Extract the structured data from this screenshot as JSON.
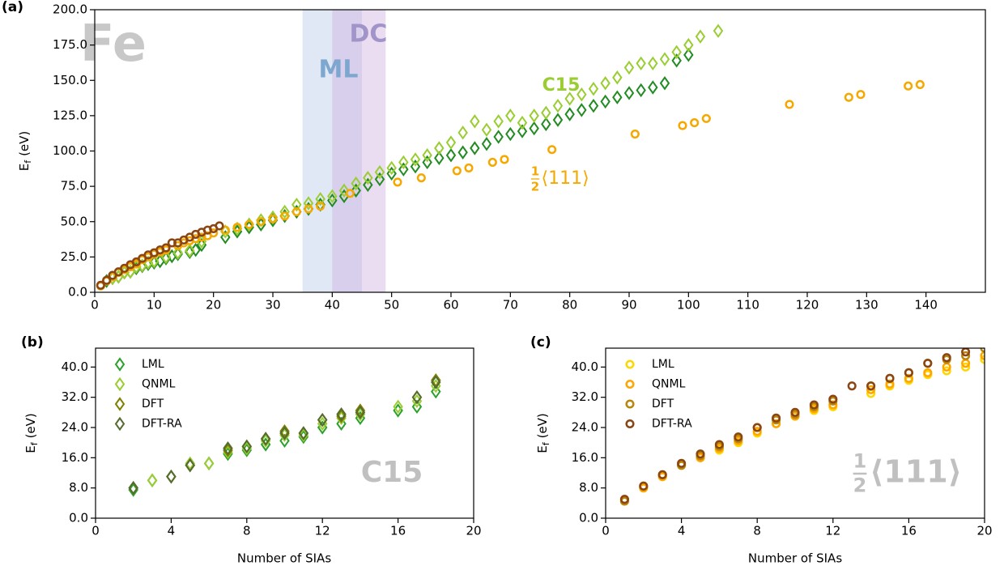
{
  "chart_data": [
    {
      "type": "scatter",
      "panel_label": "(a)",
      "y_label": {
        "main": "E",
        "sub": "f",
        "unit": "(eV)"
      },
      "xlim": [
        0,
        150
      ],
      "ylim": [
        0,
        200
      ],
      "xticks": [
        0,
        10,
        20,
        30,
        40,
        50,
        60,
        70,
        80,
        90,
        100,
        110,
        120,
        130,
        140
      ],
      "yticks": [
        {
          "value": 0,
          "label": "0.0"
        },
        {
          "value": 25,
          "label": "25.0"
        },
        {
          "value": 50,
          "label": "50.0"
        },
        {
          "value": 75,
          "label": "75.0"
        },
        {
          "value": 100,
          "label": "100.0"
        },
        {
          "value": 125,
          "label": "125.0"
        },
        {
          "value": 150,
          "label": "150.0"
        },
        {
          "value": 175,
          "label": "175.0"
        },
        {
          "value": 200,
          "label": "200.0"
        }
      ],
      "spans": [
        {
          "range": [
            35,
            45
          ],
          "color": "#aec2e4"
        },
        {
          "range": [
            40,
            49
          ],
          "color": "#c7a6da"
        }
      ],
      "annotations": [
        {
          "text": "Fe",
          "color": "#c8c8c8"
        },
        {
          "text": "ML",
          "color": "#7ea7cf"
        },
        {
          "text": "DC",
          "color": "#a194c8"
        },
        {
          "text": "C15",
          "color": "#9acd32"
        }
      ],
      "fraction_label": {
        "numerator": "1",
        "denominator": "2",
        "text": "⟨111⟩",
        "color": "#f5a800"
      },
      "series": [
        {
          "color": "#228b22",
          "marker": "diamond",
          "x": [
            2,
            3,
            4,
            5,
            6,
            7,
            8,
            9,
            10,
            11,
            12,
            13,
            14,
            16,
            17,
            18,
            22,
            24,
            26,
            28,
            30,
            32,
            34,
            36,
            38,
            40,
            42,
            44,
            46,
            48,
            50,
            52,
            54,
            56,
            58,
            60,
            62,
            64,
            66,
            68,
            70,
            72,
            74,
            76,
            78,
            80,
            82,
            84,
            86,
            88,
            90,
            92,
            94,
            96,
            98,
            100
          ],
          "values": [
            8,
            10,
            11,
            14,
            14.5,
            17,
            18.5,
            20,
            21,
            22,
            24,
            25.5,
            27,
            28.5,
            30,
            33.5,
            39,
            43,
            46,
            48,
            51,
            54,
            57,
            59,
            62,
            65,
            68,
            72,
            76,
            80,
            84,
            87,
            89,
            92,
            95,
            97,
            99,
            102,
            105,
            110,
            112,
            114,
            116,
            119,
            122,
            126,
            129,
            132,
            135,
            138,
            141,
            143,
            145,
            148,
            164,
            168
          ]
        },
        {
          "color": "#9acd32",
          "marker": "diamond",
          "x": [
            3,
            4,
            5,
            6,
            7,
            8,
            9,
            10,
            12,
            14,
            16,
            18,
            22,
            24,
            26,
            28,
            30,
            32,
            34,
            36,
            38,
            40,
            42,
            44,
            46,
            48,
            50,
            52,
            54,
            56,
            58,
            60,
            62,
            64,
            66,
            68,
            70,
            72,
            74,
            76,
            78,
            80,
            82,
            84,
            86,
            88,
            90,
            92,
            94,
            96,
            98,
            100,
            102,
            105
          ],
          "values": [
            10,
            11,
            14,
            14.5,
            18,
            19,
            21,
            22,
            25,
            28,
            29.5,
            36,
            43,
            45,
            48,
            51,
            53,
            57,
            62,
            63,
            66,
            68,
            72,
            77,
            81,
            85,
            88,
            92,
            94,
            97,
            102,
            106,
            113,
            121,
            115,
            121,
            125,
            120,
            125,
            127,
            132,
            137,
            140,
            144,
            148,
            152,
            159,
            162,
            162,
            165,
            170,
            175,
            181,
            185
          ]
        },
        {
          "color": "#f5a800",
          "marker": "circle",
          "x": [
            1,
            2,
            3,
            4,
            5,
            6,
            7,
            8,
            9,
            10,
            11,
            12,
            14,
            15,
            16,
            17,
            18,
            19,
            20,
            22,
            24,
            26,
            28,
            30,
            32,
            34,
            36,
            38,
            43,
            51,
            55,
            61,
            63,
            67,
            69,
            77,
            91,
            99,
            101,
            103,
            117,
            127,
            129,
            137,
            139
          ],
          "values": [
            4.5,
            8,
            11,
            14,
            16,
            18,
            20,
            23,
            25,
            27,
            28.5,
            30,
            33,
            35,
            36.5,
            38,
            39,
            40,
            42,
            44,
            46,
            48,
            50,
            52,
            54,
            57,
            59,
            61,
            70,
            78,
            81,
            86,
            88,
            92,
            94,
            101,
            112,
            118,
            120,
            123,
            133,
            138,
            140,
            146,
            147
          ]
        },
        {
          "color": "#8b4513",
          "marker": "circle",
          "x": [
            1,
            2,
            3,
            4,
            5,
            6,
            7,
            8,
            9,
            10,
            11,
            12,
            13,
            14,
            15,
            16,
            17,
            18,
            19,
            20,
            21
          ],
          "values": [
            5,
            8.5,
            12,
            14.5,
            17,
            19.5,
            21.5,
            24,
            26.5,
            28,
            30,
            31.5,
            35,
            35,
            37,
            39,
            41,
            42.5,
            44,
            45,
            47
          ]
        }
      ]
    },
    {
      "type": "scatter",
      "panel_label": "(b)",
      "x_label": "Number of SIAs",
      "y_label": {
        "main": "E",
        "sub": "f",
        "unit": "(eV)"
      },
      "xlim": [
        0,
        20
      ],
      "ylim": [
        0,
        45
      ],
      "xticks": [
        0,
        4,
        8,
        12,
        16,
        20
      ],
      "yticks": [
        {
          "value": 0,
          "label": "0.0"
        },
        {
          "value": 8,
          "label": "8.0"
        },
        {
          "value": 16,
          "label": "16.0"
        },
        {
          "value": 24,
          "label": "24.0"
        },
        {
          "value": 32,
          "label": "32.0"
        },
        {
          "value": 40,
          "label": "40.0"
        }
      ],
      "legend": "upper left",
      "annotations": [
        {
          "text": "C15",
          "color": "#c0c0c0"
        }
      ],
      "x": [
        2,
        3,
        4,
        5,
        6,
        7,
        8,
        9,
        10,
        11,
        12,
        13,
        14,
        16,
        17,
        18
      ],
      "series": [
        {
          "name": "LML",
          "color": "#2ca02c",
          "marker": "diamond",
          "values": [
            7.5,
            10,
            11,
            14,
            14.5,
            17,
            18,
            19.5,
            20.5,
            21.5,
            24,
            25,
            26.5,
            28.5,
            29.5,
            33.5
          ]
        },
        {
          "name": "QNML",
          "color": "#9acd32",
          "marker": "diamond",
          "values": [
            8,
            10,
            11,
            14.5,
            14.5,
            17.5,
            18.5,
            20.5,
            22,
            22,
            25,
            26.5,
            27.5,
            29.5,
            31,
            35
          ]
        },
        {
          "name": "DFT",
          "color": "#808000",
          "marker": "diamond",
          "values": [
            8,
            null,
            11,
            14,
            null,
            18,
            19,
            21,
            23,
            22.5,
            26,
            27,
            28.5,
            null,
            32,
            36.5
          ]
        },
        {
          "name": "DFT-RA",
          "color": "#556b2f",
          "marker": "diamond",
          "values": [
            8,
            null,
            11,
            14,
            null,
            18.5,
            19,
            21,
            22.5,
            22.5,
            26,
            27.5,
            28,
            null,
            32,
            36
          ]
        }
      ]
    },
    {
      "type": "scatter",
      "panel_label": "(c)",
      "x_label": "Number of SIAs",
      "y_label": {
        "main": "E",
        "sub": "f",
        "unit": "(eV)"
      },
      "xlim": [
        0,
        20
      ],
      "ylim": [
        0,
        45
      ],
      "xticks": [
        0,
        4,
        8,
        12,
        16,
        20
      ],
      "yticks": [
        {
          "value": 0,
          "label": "0.0"
        },
        {
          "value": 8,
          "label": "8.0"
        },
        {
          "value": 16,
          "label": "16.0"
        },
        {
          "value": 24,
          "label": "24.0"
        },
        {
          "value": 32,
          "label": "32.0"
        },
        {
          "value": 40,
          "label": "40.0"
        }
      ],
      "legend": "upper left",
      "fraction_label": {
        "numerator": "1",
        "denominator": "2",
        "text": "⟨111⟩",
        "color": "#c0c0c0"
      },
      "x": [
        1,
        2,
        3,
        4,
        5,
        6,
        7,
        8,
        9,
        10,
        11,
        12,
        13,
        14,
        15,
        16,
        17,
        18,
        19,
        20
      ],
      "series": [
        {
          "name": "LML",
          "color": "#ffd700",
          "marker": "circle",
          "values": [
            4.5,
            8,
            11,
            14,
            16,
            18,
            20,
            22.5,
            25,
            27,
            28.5,
            29.5,
            null,
            33,
            35,
            36.5,
            38,
            39,
            40,
            42
          ]
        },
        {
          "name": "QNML",
          "color": "#ffa500",
          "marker": "circle",
          "values": [
            5,
            8,
            11,
            14,
            16,
            18.5,
            20.5,
            23,
            25,
            27,
            29,
            30,
            null,
            34,
            35.5,
            37,
            38.5,
            40,
            41,
            43
          ]
        },
        {
          "name": "DFT",
          "color": "#b8860b",
          "marker": "circle",
          "values": [
            4.5,
            8.5,
            11.5,
            14,
            16.5,
            19,
            21,
            24,
            26,
            27.5,
            29.5,
            31,
            null,
            35,
            37,
            38.5,
            41,
            42,
            43,
            45
          ]
        },
        {
          "name": "DFT-RA",
          "color": "#8b4513",
          "marker": "circle",
          "values": [
            5,
            8.5,
            11.5,
            14.5,
            17,
            19.5,
            21.5,
            24,
            26.5,
            28,
            30,
            31.5,
            35,
            35,
            37,
            38.5,
            41,
            42.5,
            44,
            46
          ]
        }
      ]
    }
  ]
}
